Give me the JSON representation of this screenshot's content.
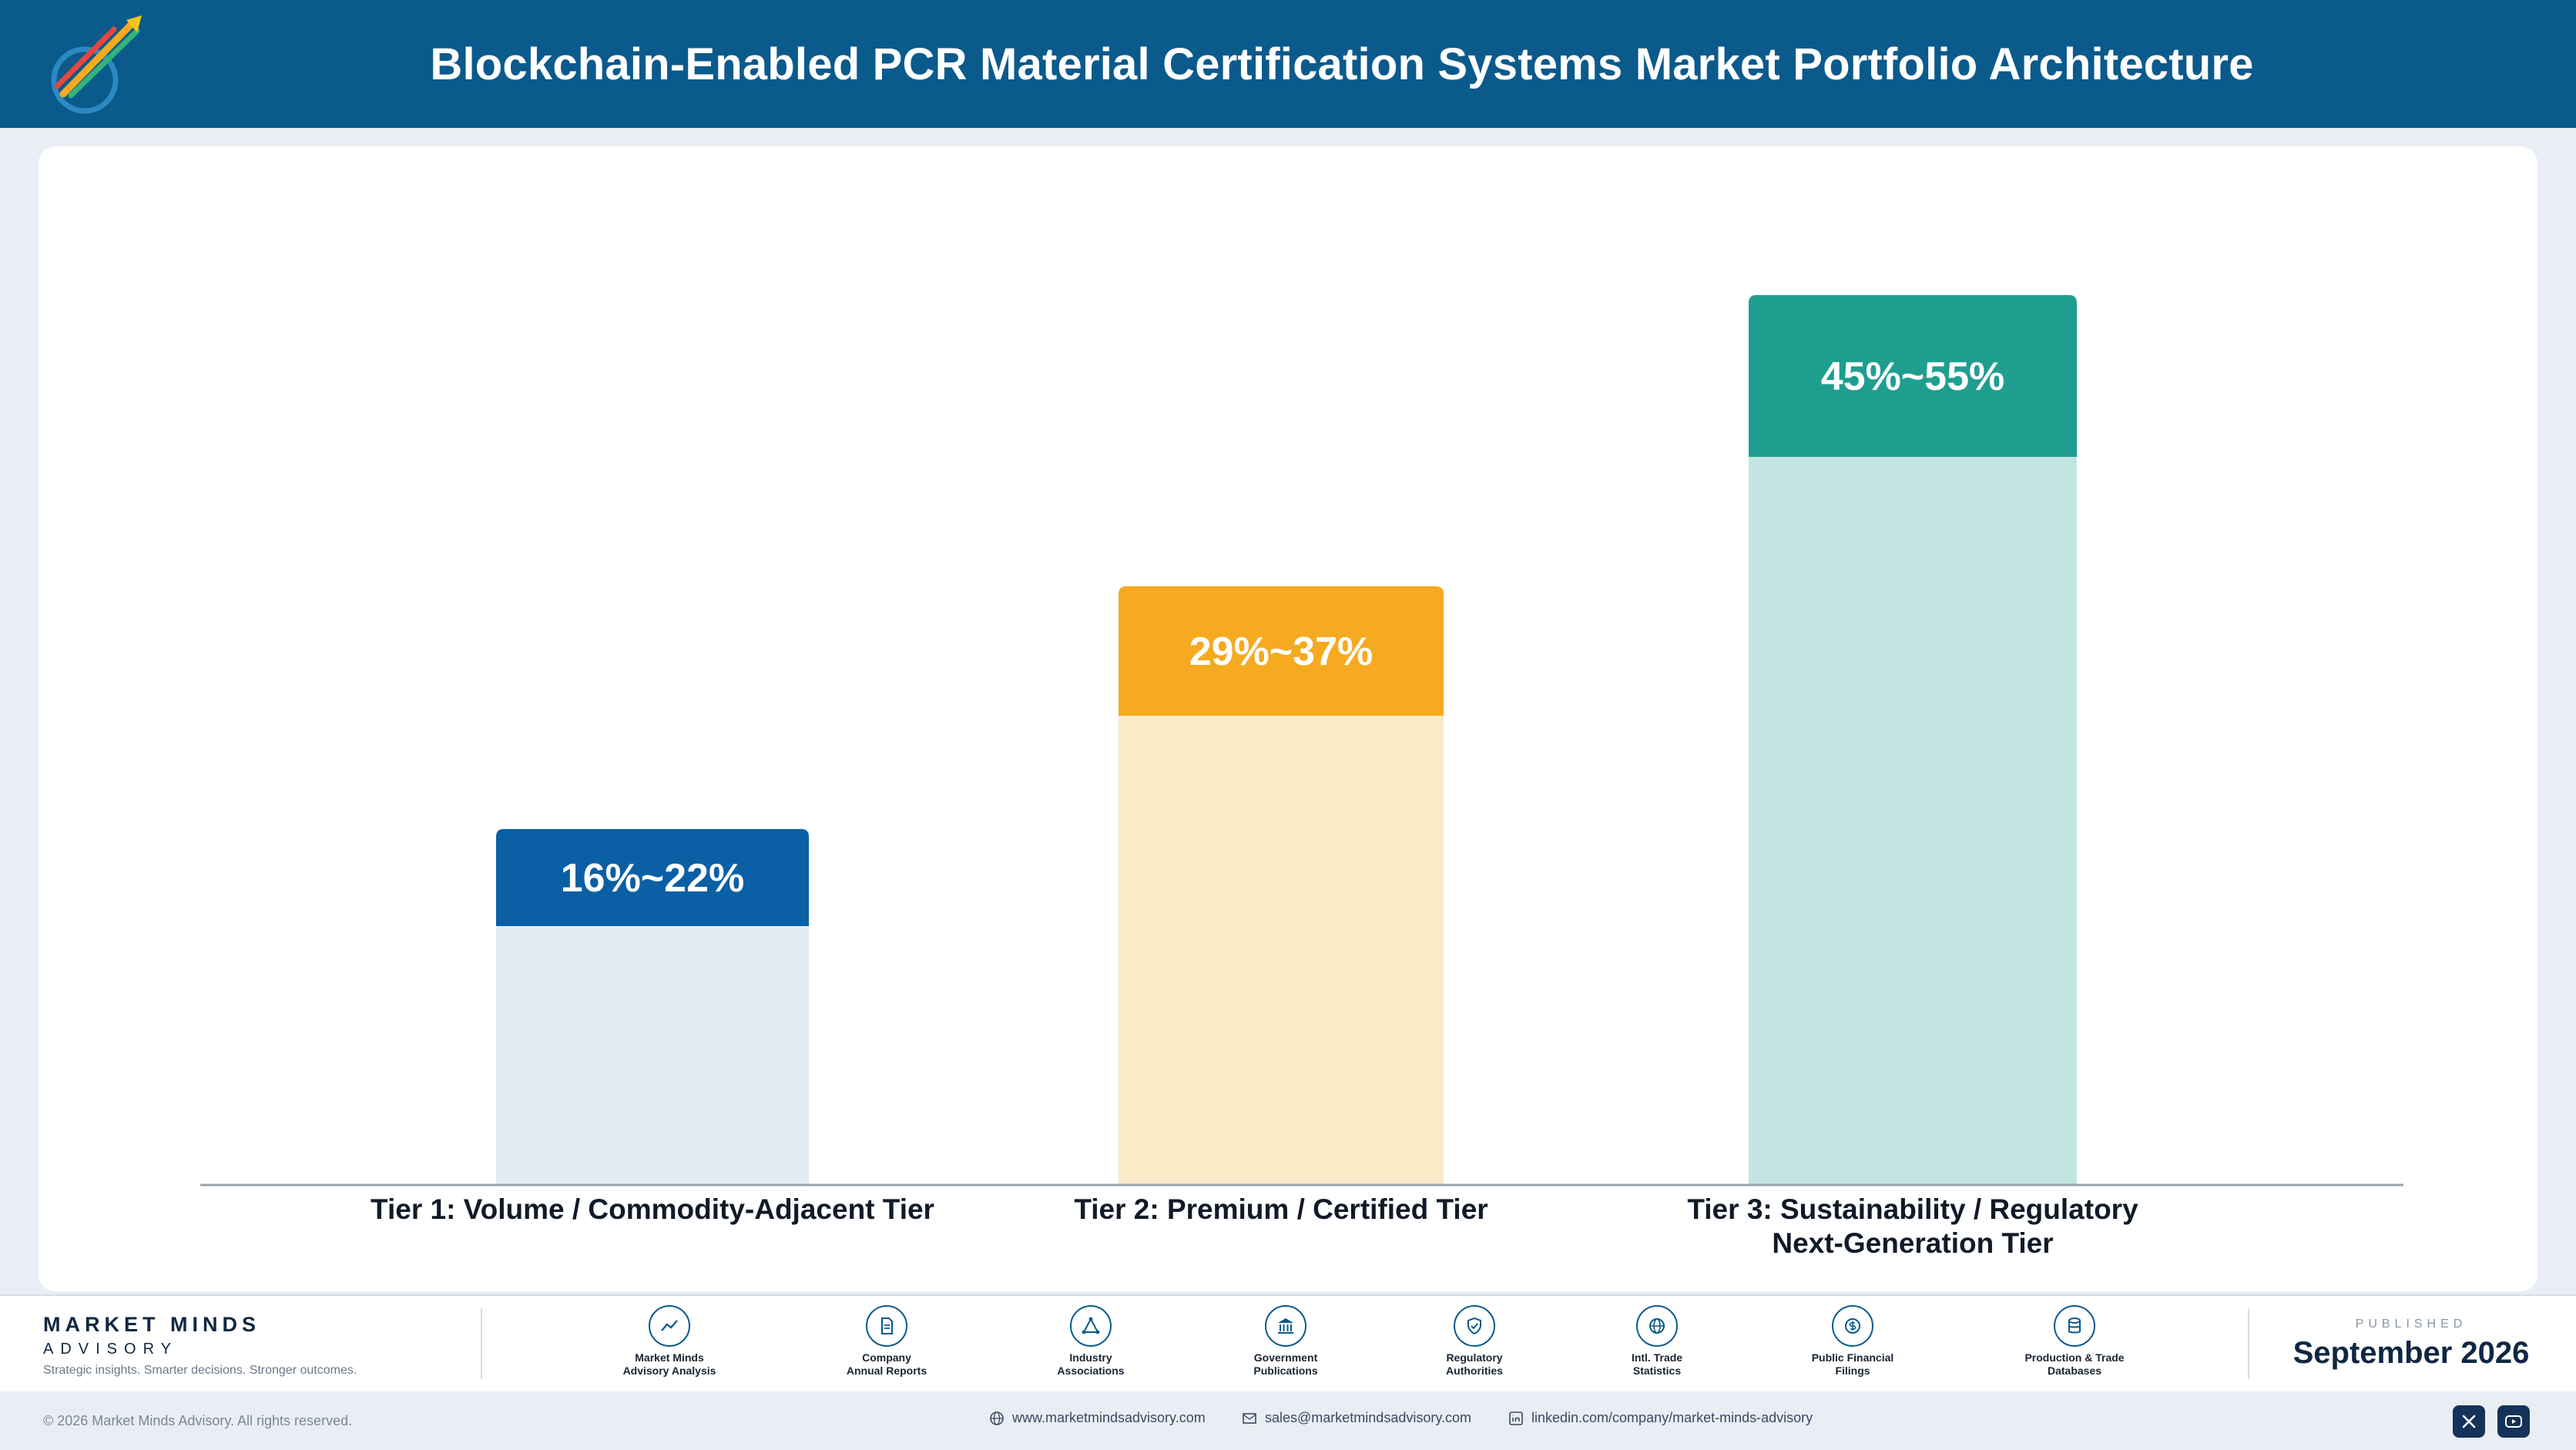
{
  "header": {
    "title": "Blockchain-Enabled PCR Material Certification Systems Market Portfolio Architecture",
    "logo_icon": "market-minds-logo"
  },
  "chart_data": {
    "type": "bar",
    "title": "",
    "xlabel": "",
    "ylabel": "",
    "categories": [
      "Tier 1: Volume / Commodity-Adjacent Tier",
      "Tier 2: Premium / Certified Tier",
      "Tier 3: Sustainability / Regulatory Next-Generation Tier"
    ],
    "category_lines": [
      [
        "Tier 1: Volume / Commodity-Adjacent Tier"
      ],
      [
        "Tier 2: Premium / Certified Tier"
      ],
      [
        "Tier 3: Sustainability / Regulatory",
        "Next-Generation Tier"
      ]
    ],
    "ranges": [
      {
        "low": 16,
        "high": 22,
        "label": "16%~22%",
        "color": "#0b5fa5",
        "light": "#e2ecf5"
      },
      {
        "low": 29,
        "high": 37,
        "label": "29%~37%",
        "color": "#f5aa20",
        "light": "#f9eac8"
      },
      {
        "low": 45,
        "high": 55,
        "label": "45%~55%",
        "color": "#1f9e90",
        "light": "#c2e5e2"
      }
    ],
    "grid": false,
    "legend": "none"
  },
  "footer": {
    "brand_name": "MARKET MINDS",
    "brand_sub": "ADVISORY",
    "brand_tagline": "Strategic insights. Smarter decisions. Stronger outcomes.",
    "sources": [
      {
        "label": "Market Minds\nAdvisory Analysis",
        "icon": "trend-line-icon"
      },
      {
        "label": "Company\nAnnual Reports",
        "icon": "document-icon"
      },
      {
        "label": "Industry\nAssociations",
        "icon": "network-icon"
      },
      {
        "label": "Government\nPublications",
        "icon": "building-icon"
      },
      {
        "label": "Regulatory\nAuthorities",
        "icon": "shield-icon"
      },
      {
        "label": "Intl. Trade\nStatistics",
        "icon": "globe-icon"
      },
      {
        "label": "Public Financial\nFilings",
        "icon": "coin-icon"
      },
      {
        "label": "Production & Trade\nDatabases",
        "icon": "database-icon"
      }
    ],
    "published_label": "PUBLISHED",
    "published_date": "September 2026"
  },
  "bottom": {
    "copyright": "© 2026 Market Minds Advisory. All rights reserved.",
    "website": "www.marketmindsadvisory.com",
    "email": "sales@marketmindsadvisory.com",
    "linkedin": "linkedin.com/company/market-minds-advisory",
    "social_icons": [
      "x-icon",
      "youtube-icon"
    ]
  }
}
